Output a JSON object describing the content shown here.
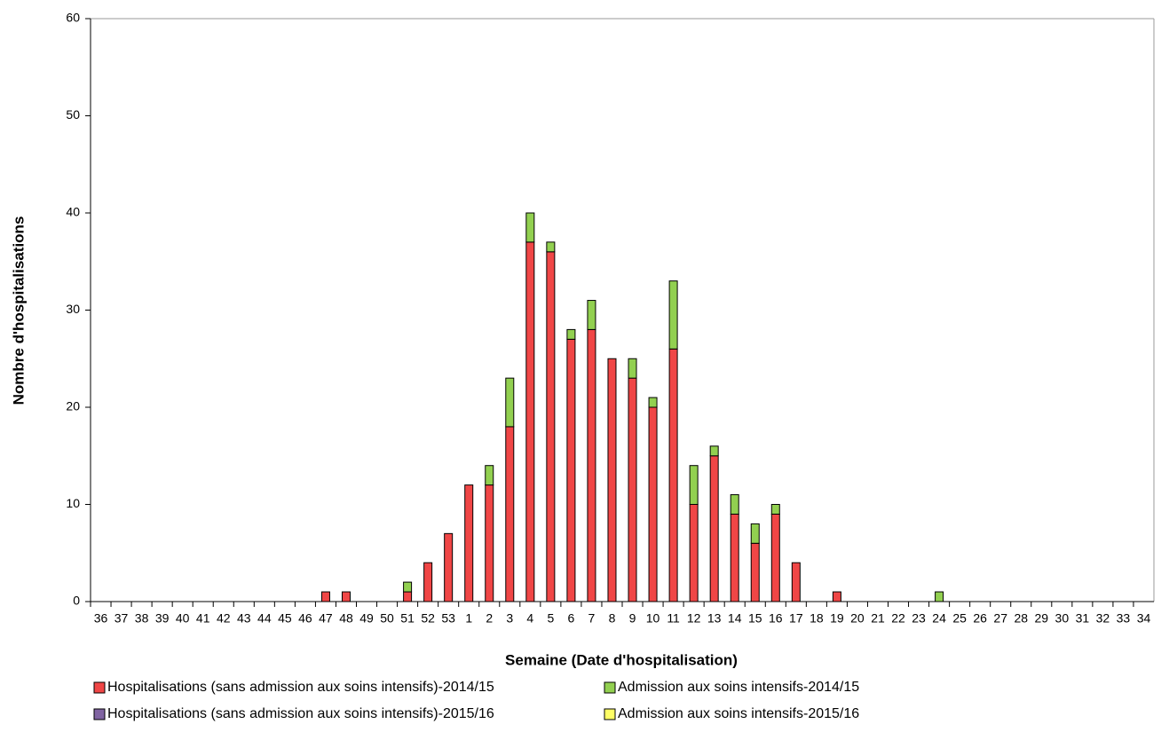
{
  "chart_data": {
    "type": "bar",
    "stacked": true,
    "xlabel": "Semaine (Date d'hospitalisation)",
    "ylabel": "Nombre d'hospitalisations",
    "categories": [
      "36",
      "37",
      "38",
      "39",
      "40",
      "41",
      "42",
      "43",
      "44",
      "45",
      "46",
      "47",
      "48",
      "49",
      "50",
      "51",
      "52",
      "53",
      "1",
      "2",
      "3",
      "4",
      "5",
      "6",
      "7",
      "8",
      "9",
      "10",
      "11",
      "12",
      "13",
      "14",
      "15",
      "16",
      "17",
      "18",
      "19",
      "20",
      "21",
      "22",
      "23",
      "24",
      "25",
      "26",
      "27",
      "28",
      "29",
      "30",
      "31",
      "32",
      "33",
      "34"
    ],
    "series": [
      {
        "name": "Hospitalisations (sans admission aux soins intensifs)-2014/15",
        "color": "#f04646",
        "values": [
          0,
          0,
          0,
          0,
          0,
          0,
          0,
          0,
          0,
          0,
          0,
          1,
          1,
          0,
          0,
          1,
          4,
          7,
          12,
          12,
          18,
          37,
          36,
          27,
          28,
          25,
          23,
          20,
          26,
          10,
          15,
          9,
          6,
          9,
          4,
          0,
          1,
          0,
          0,
          0,
          0,
          0,
          0,
          0,
          0,
          0,
          0,
          0,
          0,
          0,
          0,
          0
        ]
      },
      {
        "name": "Admission aux soins intensifs-2014/15",
        "color": "#92d050",
        "values": [
          0,
          0,
          0,
          0,
          0,
          0,
          0,
          0,
          0,
          0,
          0,
          0,
          0,
          0,
          0,
          1,
          0,
          0,
          0,
          2,
          5,
          3,
          1,
          1,
          3,
          0,
          2,
          1,
          7,
          4,
          1,
          2,
          2,
          1,
          0,
          0,
          0,
          0,
          0,
          0,
          0,
          1,
          0,
          0,
          0,
          0,
          0,
          0,
          0,
          0,
          0,
          0
        ]
      },
      {
        "name": "Hospitalisations (sans admission aux soins intensifs)-2015/16",
        "color": "#8064a2",
        "values": [
          0,
          0,
          0,
          0,
          0,
          0,
          0,
          0,
          0,
          0,
          0,
          0,
          0,
          0,
          0,
          0,
          0,
          0,
          0,
          0,
          0,
          0,
          0,
          0,
          0,
          0,
          0,
          0,
          0,
          0,
          0,
          0,
          0,
          0,
          0,
          0,
          0,
          0,
          0,
          0,
          0,
          0,
          0,
          0,
          0,
          0,
          0,
          0,
          0,
          0,
          0,
          0
        ]
      },
      {
        "name": "Admission aux soins intensifs-2015/16",
        "color": "#ffff66",
        "values": [
          0,
          0,
          0,
          0,
          0,
          0,
          0,
          0,
          0,
          0,
          0,
          0,
          0,
          0,
          0,
          0,
          0,
          0,
          0,
          0,
          0,
          0,
          0,
          0,
          0,
          0,
          0,
          0,
          0,
          0,
          0,
          0,
          0,
          0,
          0,
          0,
          0,
          0,
          0,
          0,
          0,
          0,
          0,
          0,
          0,
          0,
          0,
          0,
          0,
          0,
          0,
          0
        ]
      }
    ],
    "ylim": [
      0,
      60
    ],
    "yticks": [
      0,
      10,
      20,
      30,
      40,
      50,
      60
    ],
    "legend": "bottom"
  }
}
